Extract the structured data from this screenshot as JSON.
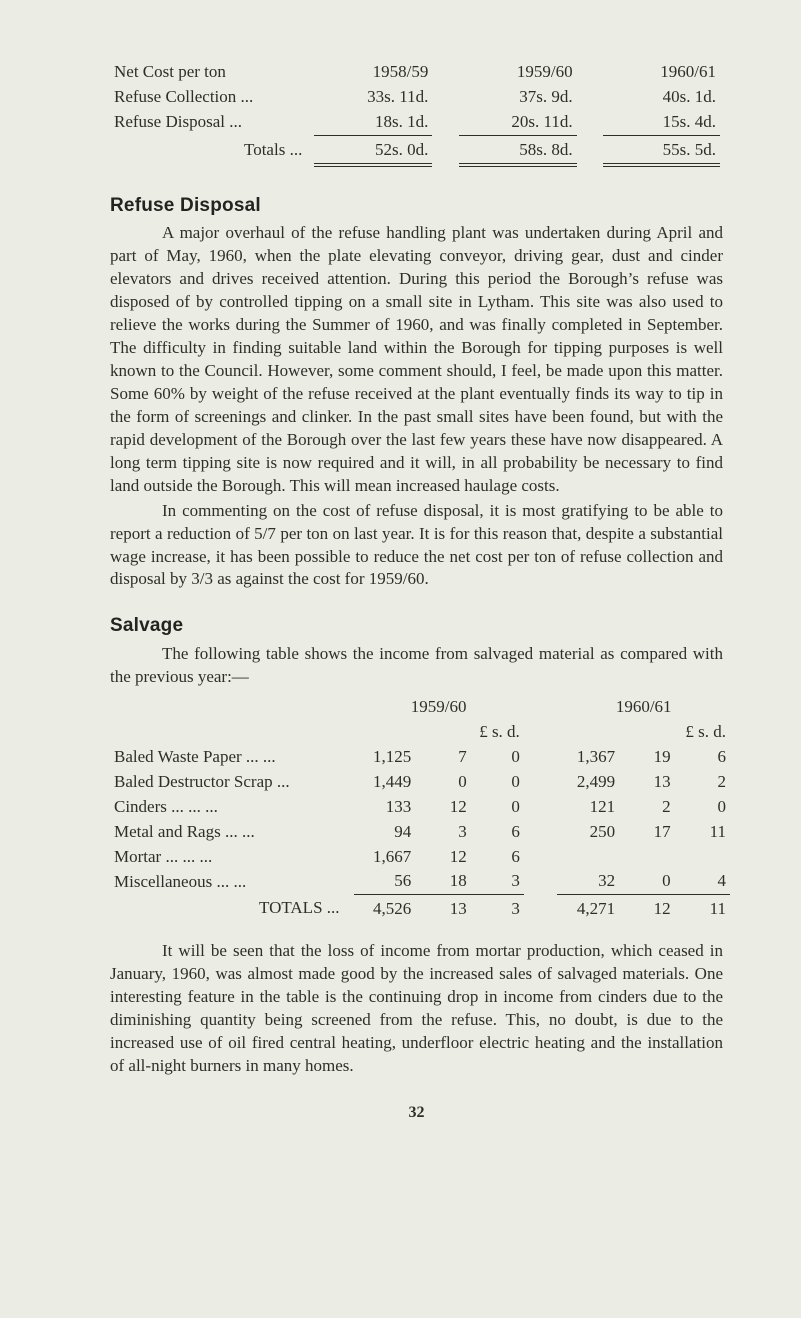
{
  "colors": {
    "page_bg": "#ebece4",
    "text": "#2e2f2a"
  },
  "typography": {
    "body_font": "Times New Roman",
    "heading_font": "Arial",
    "body_size_pt": 13,
    "heading_size_pt": 14
  },
  "table1": {
    "type": "table",
    "row0": {
      "label": "Net Cost per ton",
      "c1": "1958/59",
      "c2": "1959/60",
      "c3": "1960/61"
    },
    "row1": {
      "label": "Refuse Collection ...",
      "c1": "33s. 11d.",
      "c2": "37s.  9d.",
      "c3": "40s.  1d."
    },
    "row2": {
      "label": "Refuse Disposal    ...",
      "c1": "18s.  1d.",
      "c2": "20s. 11d.",
      "c3": "15s.  4d."
    },
    "totals": {
      "label": "Totals ...",
      "c1": "52s.  0d.",
      "c2": "58s.  8d.",
      "c3": "55s.  5d."
    }
  },
  "h1": "Refuse Disposal",
  "p1": "A major overhaul of the refuse handling plant was undertaken during April and part of May, 1960, when the plate elevating conveyor, driving gear, dust and cinder elevators and drives received attention. During this period the Borough’s refuse was disposed of by controlled tipping on a small site in Lytham. This site was also used to relieve the works during the Summer of 1960, and was finally completed in September. The difficulty in finding suitable land within the Borough for tipping purposes is well known to the Council. However, some comment should, I feel, be made upon this matter. Some 60% by weight of the refuse received at the plant eventually finds its way to tip in the form of screenings and clinker. In the past small sites have been found, but with the rapid development of the Borough over the last few years these have now disappeared. A long term tipping site is now required and it will, in all probability be necessary to find land outside the Borough. This will mean increased haulage costs.",
  "p2": "In commenting on the cost of refuse disposal, it is most gratifying to be able to report a reduction of 5/7 per ton on last year. It is for this reason that, despite a substantial wage increase, it has been possible to reduce the net cost per ton of refuse collection and disposal by 3/3 as against the cost for 1959/60.",
  "h2": "Salvage",
  "p3": "The following table shows the income from salvaged material as compared with the previous year:—",
  "table2": {
    "type": "table",
    "head_year1": "1959/60",
    "head_year2": "1960/61",
    "unit1": "£  s.  d.",
    "unit2": "£  s.  d.",
    "rows": [
      {
        "label": "Baled Waste Paper   ...      ...",
        "a": "1,125",
        "b": "7",
        "c": "0",
        "d": "1,367",
        "e": "19",
        "f": "6"
      },
      {
        "label": "Baled Destructor Scrap       ...",
        "a": "1,449",
        "b": "0",
        "c": "0",
        "d": "2,499",
        "e": "13",
        "f": "2"
      },
      {
        "label": "Cinders            ...      ...      ...",
        "a": "133",
        "b": "12",
        "c": "0",
        "d": "121",
        "e": "2",
        "f": "0"
      },
      {
        "label": "Metal and Rags          ...      ...",
        "a": "94",
        "b": "3",
        "c": "6",
        "d": "250",
        "e": "17",
        "f": "11"
      },
      {
        "label": "Mortar             ...      ...      ...",
        "a": "1,667",
        "b": "12",
        "c": "6",
        "d": "",
        "e": "",
        "f": ""
      },
      {
        "label": "Miscellaneous            ...      ...",
        "a": "56",
        "b": "18",
        "c": "3",
        "d": "32",
        "e": "0",
        "f": "4"
      }
    ],
    "totals": {
      "label": "TOTALS ...",
      "a": "4,526",
      "b": "13",
      "c": "3",
      "d": "4,271",
      "e": "12",
      "f": "11"
    }
  },
  "p4": "It will be seen that the loss of income from mortar production, which ceased in January, 1960, was almost made good by the increased sales of salvaged materials. One interesting feature in the table is the continuing drop in income from cinders due to the diminishing quantity being screened from the refuse. This, no doubt, is due to the increased use of oil fired central heating, underfloor electric heating and the installation of all-night burners in many homes.",
  "page_number": "32"
}
